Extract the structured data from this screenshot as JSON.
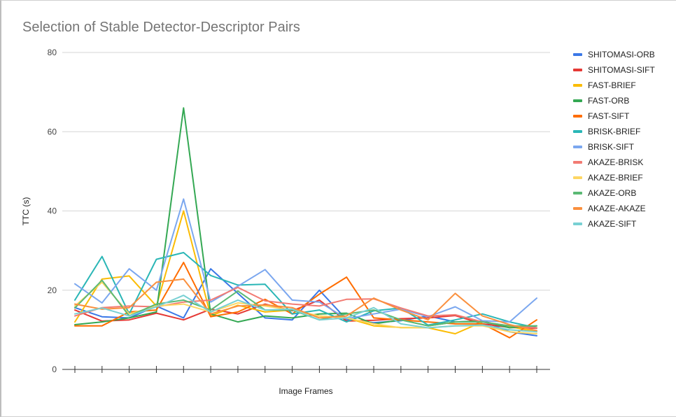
{
  "chart_data": {
    "type": "line",
    "title": "Selection of Stable Detector-Descriptor Pairs",
    "xlabel": "Image Frames",
    "ylabel": "TTC (s)",
    "ylim": [
      0,
      80
    ],
    "yticks": [
      0,
      20,
      40,
      60,
      80
    ],
    "x": [
      1,
      2,
      3,
      4,
      5,
      6,
      7,
      8,
      9,
      10,
      11,
      12,
      13,
      14,
      15,
      16,
      17,
      18
    ],
    "grid": true,
    "legend_position": "right",
    "series": [
      {
        "name": "SHITOMASI-ORB",
        "color": "#3b78e7",
        "values": [
          15.6,
          13.3,
          13.0,
          16.0,
          13.0,
          25.4,
          19.2,
          13.0,
          12.5,
          20.0,
          12.6,
          11.8,
          12.3,
          13.5,
          12.0,
          12.2,
          9.5,
          8.5
        ]
      },
      {
        "name": "SHITOMASI-SIFT",
        "color": "#e53935",
        "values": [
          15.0,
          12.2,
          12.5,
          14.2,
          12.5,
          15.2,
          14.0,
          16.5,
          14.8,
          17.5,
          12.2,
          12.4,
          12.8,
          13.0,
          13.6,
          11.5,
          10.6,
          10.4
        ]
      },
      {
        "name": "FAST-BRIEF",
        "color": "#fbbc04",
        "values": [
          12.0,
          22.8,
          23.6,
          16.0,
          40.0,
          13.5,
          16.2,
          14.5,
          15.0,
          13.5,
          13.0,
          11.0,
          10.6,
          10.5,
          9.0,
          12.0,
          10.8,
          9.5
        ]
      },
      {
        "name": "FAST-ORB",
        "color": "#34a853",
        "values": [
          11.3,
          12.0,
          13.0,
          14.5,
          66.0,
          14.0,
          12.0,
          13.5,
          13.0,
          14.0,
          14.2,
          11.5,
          12.5,
          11.0,
          12.0,
          12.2,
          10.5,
          11.0
        ]
      },
      {
        "name": "FAST-SIFT",
        "color": "#ff6d00",
        "values": [
          11.0,
          11.0,
          14.5,
          15.0,
          27.0,
          13.3,
          14.5,
          17.7,
          14.0,
          19.0,
          23.3,
          13.0,
          12.5,
          12.0,
          11.5,
          11.5,
          8.0,
          12.5
        ]
      },
      {
        "name": "BRISK-BRIEF",
        "color": "#2ab6b6",
        "values": [
          17.5,
          28.5,
          14.0,
          27.8,
          29.5,
          23.7,
          21.3,
          21.5,
          14.0,
          15.0,
          12.0,
          14.8,
          15.5,
          11.2,
          12.5,
          14.0,
          12.0,
          10.5
        ]
      },
      {
        "name": "BRISK-SIFT",
        "color": "#7ba7ef",
        "values": [
          21.6,
          16.8,
          25.4,
          20.0,
          43.0,
          17.0,
          21.0,
          25.2,
          17.5,
          17.0,
          12.8,
          14.0,
          15.2,
          13.3,
          15.8,
          12.3,
          12.0,
          18.0
        ]
      },
      {
        "name": "AKAZE-BRISK",
        "color": "#f27b73",
        "values": [
          13.5,
          15.6,
          16.0,
          15.8,
          17.0,
          17.5,
          20.7,
          17.3,
          16.5,
          16.0,
          17.7,
          17.8,
          15.5,
          13.5,
          13.8,
          12.0,
          11.0,
          10.5
        ]
      },
      {
        "name": "AKAZE-BRIEF",
        "color": "#fdd663",
        "values": [
          16.0,
          22.0,
          14.0,
          16.0,
          16.5,
          14.5,
          16.8,
          16.0,
          15.0,
          13.5,
          13.0,
          11.5,
          10.5,
          10.5,
          11.0,
          11.0,
          9.5,
          9.0
        ]
      },
      {
        "name": "AKAZE-ORB",
        "color": "#5bb974",
        "values": [
          15.5,
          22.5,
          13.5,
          16.5,
          17.5,
          15.0,
          19.8,
          15.0,
          15.0,
          12.5,
          14.0,
          15.0,
          12.5,
          11.0,
          12.0,
          12.0,
          11.0,
          11.0
        ]
      },
      {
        "name": "AKAZE-AKAZE",
        "color": "#fa903e",
        "values": [
          16.5,
          15.2,
          15.6,
          22.0,
          22.8,
          14.0,
          16.0,
          16.3,
          15.6,
          13.0,
          13.5,
          18.0,
          15.0,
          12.5,
          19.2,
          13.5,
          11.3,
          9.8
        ]
      },
      {
        "name": "AKAZE-SIFT",
        "color": "#78d0d3",
        "values": [
          14.0,
          15.5,
          13.5,
          15.8,
          18.7,
          14.5,
          17.5,
          15.0,
          15.2,
          12.5,
          13.0,
          15.6,
          11.5,
          10.5,
          11.0,
          11.2,
          10.0,
          9.5
        ]
      }
    ]
  }
}
